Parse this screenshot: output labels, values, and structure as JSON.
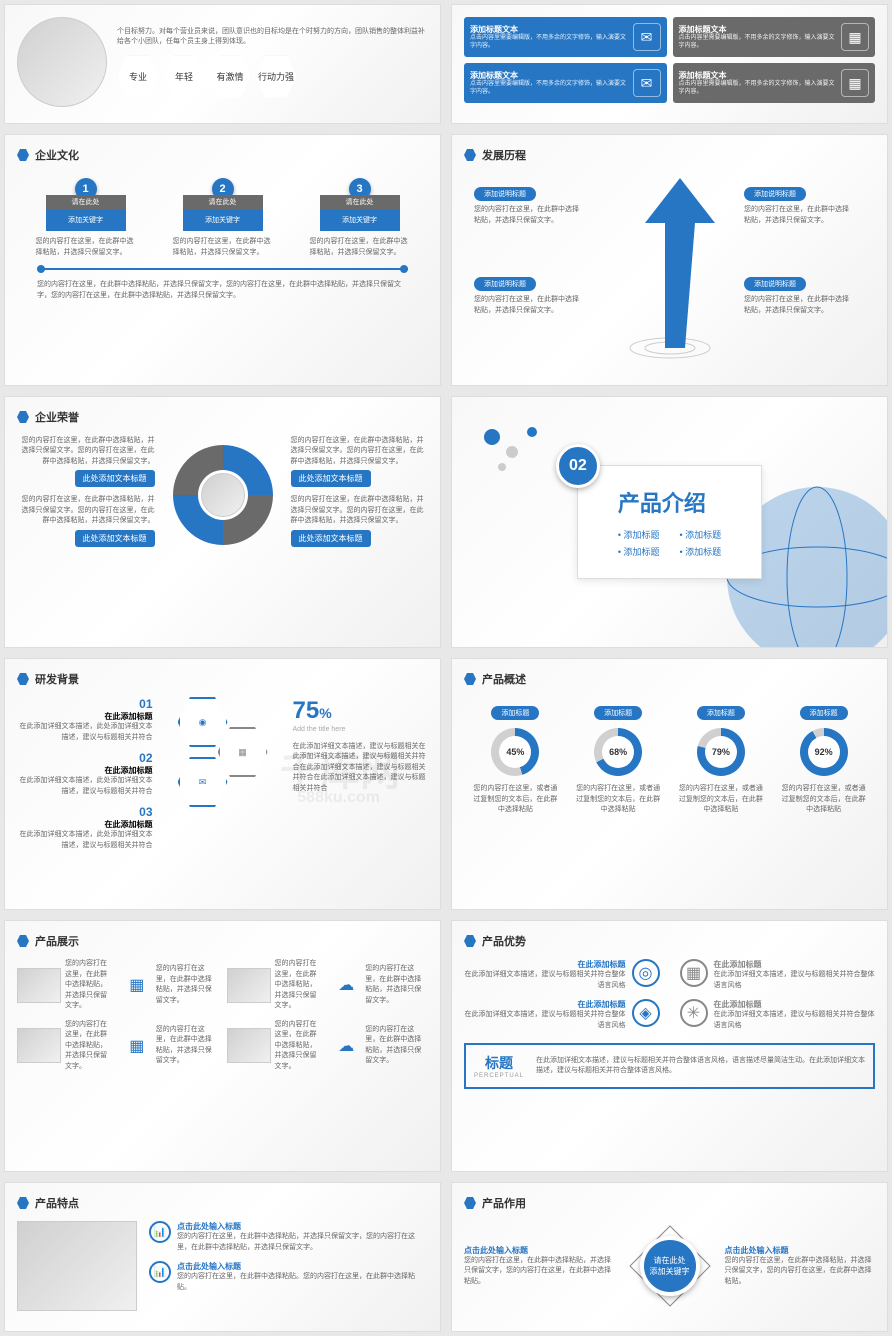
{
  "colors": {
    "primary": "#2676c4",
    "gray": "#6a6a6a",
    "bg": "#f8f8f8",
    "text": "#333",
    "muted": "#666"
  },
  "watermark": {
    "logo": "千库网",
    "sub": "588ku.com"
  },
  "slides": {
    "s1": {
      "hexLabels": [
        "专业",
        "年轻",
        "有激情",
        "行动力强"
      ],
      "desc": "个目标努力。对每个营业员来说，团队意识也的目标均是在个时努力的方向，团队销售的整体利益补给各个小团队，任每个员主身上得到体现。"
    },
    "s2": {
      "cards": [
        {
          "title": "添加标题文本",
          "desc": "点击内容里需要编辑版，不用多余的文字修饰，输入演要文字内容。",
          "bg": "#2676c4"
        },
        {
          "title": "添加标题文本",
          "desc": "点击内容里需要编辑版，不用多余的文字修饰，输入演要文字内容。",
          "bg": "#6a6a6a"
        },
        {
          "title": "添加标题文本",
          "desc": "点击内容里需要编辑版，不用多余的文字修饰，输入演要文字内容。",
          "bg": "#2676c4"
        },
        {
          "title": "添加标题文本",
          "desc": "点击内容里需要编辑版，不用多余的文字修饰，输入演要文字内容。",
          "bg": "#6a6a6a"
        }
      ]
    },
    "s3": {
      "title": "企业文化",
      "steps": [
        {
          "num": "1",
          "label": "请在此处",
          "sub": "添加关键字",
          "desc": "您的内容打在这里，在此群中选择粘贴，并选择只保留文字。"
        },
        {
          "num": "2",
          "label": "请在此处",
          "sub": "添加关键字",
          "desc": "您的内容打在这里，在此群中选择粘贴，并选择只保留文字。"
        },
        {
          "num": "3",
          "label": "请在此处",
          "sub": "添加关键字",
          "desc": "您的内容打在这里，在此群中选择粘贴，并选择只保留文字。"
        }
      ],
      "bottom": "您的内容打在这里，在此群中选择粘贴，并选择只保留文字，您的内容打在这里，在此群中选择粘贴，并选择只保留文字，您的内容打在这里，在此群中选择粘贴，并选择只保留文字。"
    },
    "s4": {
      "title": "发展历程",
      "items": [
        {
          "label": "添加说明标题",
          "desc": "您的内容打在这里，在此群中选择粘贴，并选择只保留文字。"
        },
        {
          "label": "添加说明标题",
          "desc": "您的内容打在这里，在此群中选择粘贴，并选择只保留文字。"
        },
        {
          "label": "添加说明标题",
          "desc": "您的内容打在这里，在此群中选择粘贴，并选择只保留文字。"
        },
        {
          "label": "添加说明标题",
          "desc": "您的内容打在这里，在此群中选择粘贴，并选择只保留文字。"
        }
      ]
    },
    "s5": {
      "title": "企业荣誉",
      "quads": [
        {
          "label": "此处添加文本标题",
          "desc": "您的内容打在这里，在此群中选择粘贴，并选择只保留文字。您的内容打在这里，在此群中选择粘贴，并选择只保留文字。"
        },
        {
          "label": "此处添加文本标题",
          "desc": "您的内容打在这里，在此群中选择粘贴，并选择只保留文字。您的内容打在这里，在此群中选择粘贴，并选择只保留文字。"
        },
        {
          "label": "此处添加文本标题",
          "desc": "您的内容打在这里，在此群中选择粘贴，并选择只保留文字。您的内容打在这里，在此群中选择粘贴，并选择只保留文字。"
        },
        {
          "label": "此处添加文本标题",
          "desc": "您的内容打在这里，在此群中选择粘贴，并选择只保留文字。您的内容打在这里，在此群中选择粘贴，并选择只保留文字。"
        }
      ]
    },
    "s6": {
      "num": "02",
      "title": "产品介绍",
      "bullets": [
        "添加标题",
        "添加标题",
        "添加标题",
        "添加标题"
      ]
    },
    "s7": {
      "title": "研发背景",
      "items": [
        {
          "num": "01",
          "label": "在此添加标题",
          "desc": "在此添加详细文本描述，此处添加详细文本描述，建议与标题相关并符合"
        },
        {
          "num": "02",
          "label": "在此添加标题",
          "desc": "在此添加详细文本描述，此处添加详细文本描述，建议与标题相关并符合"
        },
        {
          "num": "03",
          "label": "在此添加标题",
          "desc": "在此添加详细文本描述，此处添加详细文本描述，建议与标题相关并符合"
        }
      ],
      "stat": {
        "value": "75",
        "unit": "%",
        "caption": "Add the title here",
        "desc": "在此添加详细文本描述，建议与标题相关在此添加详细文本描述，建议与标题相关并符合在此添加详细文本描述，建议与标题相关并符合在此添加详细文本描述，建议与标题相关并符合"
      }
    },
    "s8": {
      "title": "产品概述",
      "donuts": [
        {
          "label": "添加标题",
          "value": 45,
          "text": "45%",
          "desc": "您的内容打在这里，或者通过复制您的文本后，在此群中选择粘贴"
        },
        {
          "label": "添加标题",
          "value": 68,
          "text": "68%",
          "desc": "您的内容打在这里，或者通过复制您的文本后，在此群中选择粘贴"
        },
        {
          "label": "添加标题",
          "value": 79,
          "text": "79%",
          "desc": "您的内容打在这里，或者通过复制您的文本后，在此群中选择粘贴"
        },
        {
          "label": "添加标题",
          "value": 92,
          "text": "92%",
          "desc": "您的内容打在这里，或者通过复制您的文本后，在此群中选择粘贴"
        }
      ],
      "donutColor": "#2676c4",
      "trackColor": "#d0d0d0"
    },
    "s9": {
      "title": "产品展示",
      "cells": [
        {
          "desc": "您的内容打在这里，在此群中选择粘贴，并选择只保留文字。"
        },
        {
          "desc": "您的内容打在这里，在此群中选择粘贴，并选择只保留文字。"
        },
        {
          "desc": "您的内容打在这里，在此群中选择粘贴，并选择只保留文字。"
        },
        {
          "desc": "您的内容打在这里，在此群中选择粘贴，并选择只保留文字。"
        },
        {
          "desc": "您的内容打在这里，在此群中选择粘贴，并选择只保留文字。"
        },
        {
          "desc": "您的内容打在这里，在此群中选择粘贴，并选择只保留文字。"
        },
        {
          "desc": "您的内容打在这里，在此群中选择粘贴，并选择只保留文字。"
        },
        {
          "desc": "您的内容打在这里，在此群中选择粘贴，并选择只保留文字。"
        }
      ]
    },
    "s10": {
      "title": "产品优势",
      "items": [
        {
          "label": "在此添加标题",
          "desc": "在此添加详细文本描述，建议与标题相关并符合整体语言风格",
          "color": "#2676c4"
        },
        {
          "label": "在此添加标题",
          "desc": "在此添加详细文本描述，建议与标题相关并符合整体语言风格",
          "color": "#888"
        },
        {
          "label": "在此添加标题",
          "desc": "在此添加详细文本描述，建议与标题相关并符合整体语言风格",
          "color": "#2676c4"
        },
        {
          "label": "在此添加标题",
          "desc": "在此添加详细文本描述，建议与标题相关并符合整体语言风格",
          "color": "#888"
        }
      ],
      "banner": {
        "title": "标题",
        "sub": "PERCEPTUAL",
        "desc": "在此添加详细文本描述，建议与标题相关并符合整体语言风格，语言描述尽量简洁生动。在此添加详细文本描述，建议与标题相关并符合整体语言风格。"
      }
    },
    "s11": {
      "title": "产品特点",
      "items": [
        {
          "label": "点击此处输入标题",
          "desc": "您的内容打在这里，在此群中选择粘贴，并选择只保留文字，您的内容打在这里，在此群中选择粘贴，并选择只保留文字。"
        },
        {
          "label": "点击此处输入标题",
          "desc": "您的内容打在这里，在此群中选择粘贴。您的内容打在这里，在此群中选择粘贴。"
        }
      ]
    },
    "s12": {
      "title": "产品作用",
      "center": {
        "label": "请在此处",
        "sub": "添加关键字"
      },
      "items": [
        {
          "label": "点击此处输入标题",
          "desc": "您的内容打在这里，在此群中选择粘贴，并选择只保留文字，您的内容打在这里，在此群中选择粘贴。"
        },
        {
          "label": "点击此处输入标题",
          "desc": "您的内容打在这里，在此群中选择粘贴，并选择只保留文字，您的内容打在这里，在此群中选择粘贴。"
        }
      ]
    }
  }
}
